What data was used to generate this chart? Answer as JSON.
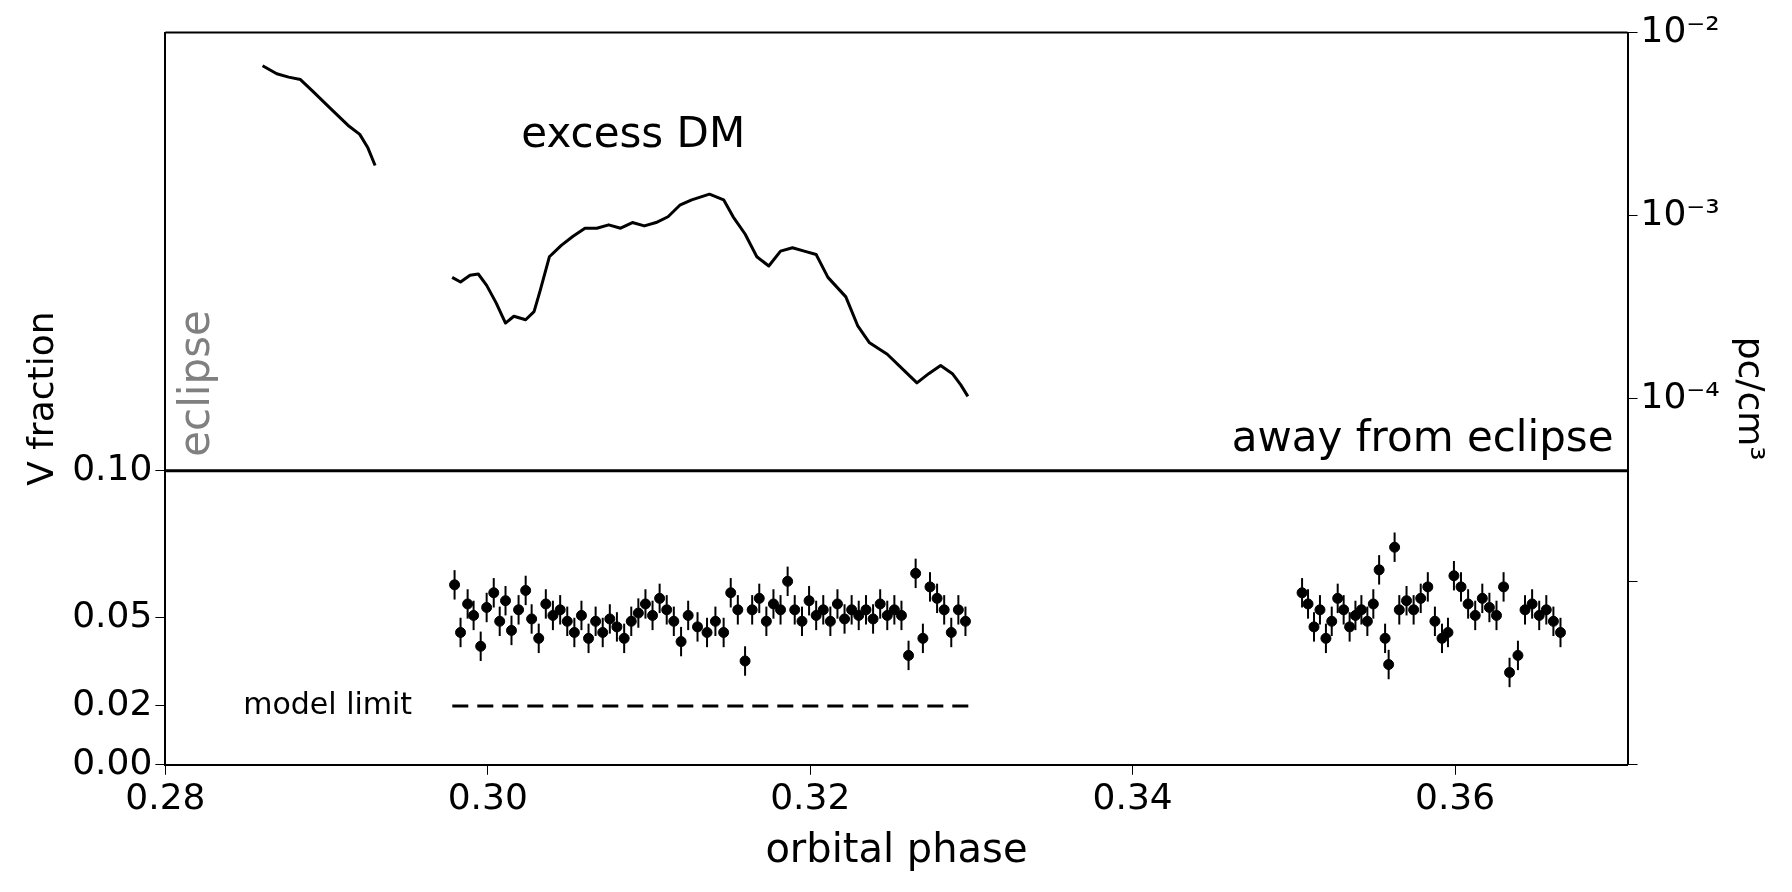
{
  "chart_data": {
    "type": "scatter",
    "xlabel": "orbital phase",
    "ylabel": "V fraction",
    "y2label": "pc/cm³",
    "xlim": [
      0.28,
      0.3707
    ],
    "xticks": [
      {
        "value": 0.28,
        "label": "0.28"
      },
      {
        "value": 0.3,
        "label": "0.30"
      },
      {
        "value": 0.32,
        "label": "0.32"
      },
      {
        "value": 0.34,
        "label": "0.34"
      },
      {
        "value": 0.36,
        "label": "0.36"
      }
    ],
    "ylim": [
      0,
      0.249
    ],
    "yticks": [
      {
        "value": 0,
        "label": "0.00"
      },
      {
        "value": 0.02,
        "label": "0.02"
      },
      {
        "value": 0.05,
        "label": "0.05"
      },
      {
        "value": 0.1,
        "label": "0.10"
      }
    ],
    "y2lim": [
      1e-06,
      0.01
    ],
    "y2ticks": [
      {
        "value": 1e-06,
        "label": null
      },
      {
        "value": 1e-05,
        "label": null
      },
      {
        "value": 0.0001,
        "label": "10⁻⁴"
      },
      {
        "value": 0.001,
        "label": "10⁻³"
      },
      {
        "value": 0.01,
        "label": "10⁻²"
      }
    ],
    "log": "y2",
    "grid": false,
    "ref_lines": [
      {
        "axis": "y",
        "value": 0.1,
        "color": "#000000"
      }
    ],
    "annotations": [
      "excess DM",
      "eclipse",
      "away from eclipse",
      "model limit"
    ],
    "series": [
      {
        "type": "line",
        "axis": "y2",
        "color": "#000000",
        "x": [
          0.28603,
          0.28691,
          0.28765,
          0.28838,
          0.28912,
          0.29022,
          0.29132,
          0.29206,
          0.29257,
          0.29301
        ],
        "values": [
          0.00659,
          0.00596,
          0.00571,
          0.00554,
          0.0048,
          0.00387,
          0.00312,
          0.00278,
          0.00234,
          0.00188
        ]
      },
      {
        "type": "line",
        "axis": "y2",
        "color": "#000000",
        "x": [
          0.29779,
          0.29831,
          0.2989,
          0.29941,
          0.29993,
          0.30051,
          0.3011,
          0.30162,
          0.30235,
          0.30287,
          0.30324,
          0.30382,
          0.30456,
          0.30529,
          0.30603,
          0.30676,
          0.3075,
          0.30824,
          0.30897,
          0.30971,
          0.31044,
          0.31118,
          0.31191,
          0.31265,
          0.31375,
          0.31463,
          0.31522,
          0.31596,
          0.31669,
          0.31743,
          0.31816,
          0.3189,
          0.31963,
          0.32037,
          0.3211,
          0.32221,
          0.32294,
          0.32368,
          0.32478,
          0.32588,
          0.32662,
          0.32735,
          0.32809,
          0.32882,
          0.32934,
          0.32978
        ],
        "values": [
          0.00046,
          0.000434,
          0.000473,
          0.00048,
          0.000416,
          0.000335,
          0.000259,
          0.000282,
          0.00027,
          0.000299,
          0.000387,
          0.000596,
          0.000688,
          0.000772,
          0.000854,
          0.000854,
          0.000891,
          0.000854,
          0.000917,
          0.000879,
          0.000917,
          0.000986,
          0.00114,
          0.00122,
          0.00131,
          0.00122,
          0.000986,
          0.000794,
          0.000596,
          0.000531,
          0.00064,
          0.000668,
          0.00064,
          0.000613,
          0.00046,
          0.00036,
          0.000251,
          0.000202,
          0.000175,
          0.000141,
          0.000122,
          0.000137,
          0.000152,
          0.000137,
          0.000119,
          0.000103
        ]
      },
      {
        "marker": "circle",
        "color": "#000000",
        "x": [
          0.29794,
          0.29831,
          0.29875,
          0.29912,
          0.29956,
          0.29993,
          0.30037,
          0.30074,
          0.3011,
          0.30147,
          0.30191,
          0.30235,
          0.30272,
          0.30316,
          0.3036,
          0.30404,
          0.30449,
          0.30493,
          0.30537,
          0.30581,
          0.30625,
          0.30669,
          0.30713,
          0.30757,
          0.30801,
          0.30846,
          0.3089,
          0.30934,
          0.30978,
          0.31022,
          0.31066,
          0.3111,
          0.31154,
          0.31199,
          0.31243,
          0.31301,
          0.3136,
          0.31412,
          0.31463,
          0.31507,
          0.31551,
          0.31596,
          0.3164,
          0.31684,
          0.31728,
          0.31772,
          0.31816,
          0.3186,
          0.31904,
          0.31949,
          0.31993,
          0.32037,
          0.32081,
          0.32125,
          0.32169,
          0.32213,
          0.32257,
          0.32301,
          0.32346,
          0.3239,
          0.32434,
          0.32478,
          0.32522,
          0.32566,
          0.3261,
          0.32654,
          0.32699,
          0.32743,
          0.32787,
          0.32831,
          0.32875,
          0.32919,
          0.32963
        ],
        "values": [
          0.0612,
          0.045,
          0.0547,
          0.0508,
          0.0403,
          0.0535,
          0.0585,
          0.0488,
          0.0558,
          0.0457,
          0.0527,
          0.0593,
          0.0496,
          0.043,
          0.0547,
          0.0508,
          0.0527,
          0.0488,
          0.045,
          0.0508,
          0.043,
          0.0488,
          0.045,
          0.0496,
          0.0469,
          0.043,
          0.0488,
          0.0516,
          0.0547,
          0.0508,
          0.0566,
          0.0527,
          0.0488,
          0.0419,
          0.0508,
          0.0469,
          0.045,
          0.0488,
          0.045,
          0.0585,
          0.0527,
          0.0353,
          0.0527,
          0.0566,
          0.0488,
          0.0547,
          0.0527,
          0.0624,
          0.0527,
          0.0488,
          0.0558,
          0.0508,
          0.0527,
          0.0488,
          0.0547,
          0.0496,
          0.0527,
          0.0508,
          0.0527,
          0.0496,
          0.0547,
          0.0508,
          0.0527,
          0.0508,
          0.0372,
          0.0651,
          0.043,
          0.0605,
          0.0566,
          0.0527,
          0.045,
          0.0527,
          0.0488
        ],
        "errors": [
          0.005,
          0.005,
          0.005,
          0.005,
          0.005,
          0.005,
          0.005,
          0.005,
          0.005,
          0.005,
          0.005,
          0.005,
          0.005,
          0.005,
          0.005,
          0.005,
          0.005,
          0.005,
          0.005,
          0.005,
          0.005,
          0.005,
          0.005,
          0.005,
          0.005,
          0.005,
          0.005,
          0.005,
          0.005,
          0.005,
          0.005,
          0.005,
          0.005,
          0.005,
          0.005,
          0.005,
          0.005,
          0.005,
          0.005,
          0.005,
          0.005,
          0.005,
          0.005,
          0.005,
          0.005,
          0.005,
          0.005,
          0.005,
          0.005,
          0.005,
          0.005,
          0.005,
          0.005,
          0.005,
          0.005,
          0.005,
          0.005,
          0.005,
          0.005,
          0.005,
          0.005,
          0.005,
          0.005,
          0.005,
          0.005,
          0.005,
          0.005,
          0.005,
          0.005,
          0.005,
          0.005,
          0.005,
          0.005
        ]
      },
      {
        "marker": "circle",
        "color": "#000000",
        "x": [
          0.35051,
          0.35088,
          0.35125,
          0.35162,
          0.35199,
          0.35235,
          0.35272,
          0.35309,
          0.35346,
          0.35382,
          0.35419,
          0.35456,
          0.35493,
          0.35529,
          0.35566,
          0.35588,
          0.35625,
          0.35654,
          0.35699,
          0.35743,
          0.35787,
          0.35831,
          0.35875,
          0.35919,
          0.35956,
          0.35993,
          0.36037,
          0.36081,
          0.36125,
          0.36169,
          0.36213,
          0.36257,
          0.36301,
          0.36338,
          0.3639,
          0.36434,
          0.36478,
          0.36522,
          0.36566,
          0.3661,
          0.36654
        ],
        "values": [
          0.0585,
          0.0547,
          0.0469,
          0.0527,
          0.043,
          0.0488,
          0.0566,
          0.0527,
          0.0469,
          0.0508,
          0.0527,
          0.0488,
          0.0547,
          0.0663,
          0.043,
          0.0341,
          0.074,
          0.0527,
          0.0558,
          0.0527,
          0.0566,
          0.0605,
          0.0488,
          0.043,
          0.045,
          0.0643,
          0.0605,
          0.0547,
          0.0508,
          0.0566,
          0.0535,
          0.0508,
          0.0605,
          0.0314,
          0.0372,
          0.0527,
          0.0547,
          0.0508,
          0.0527,
          0.0488,
          0.045
        ],
        "errors": [
          0.005,
          0.005,
          0.005,
          0.005,
          0.005,
          0.005,
          0.005,
          0.005,
          0.005,
          0.005,
          0.005,
          0.005,
          0.005,
          0.005,
          0.005,
          0.005,
          0.005,
          0.005,
          0.005,
          0.005,
          0.005,
          0.005,
          0.005,
          0.005,
          0.005,
          0.005,
          0.005,
          0.005,
          0.005,
          0.005,
          0.005,
          0.005,
          0.005,
          0.005,
          0.005,
          0.005,
          0.005,
          0.005,
          0.005,
          0.005,
          0.005
        ]
      },
      {
        "type": "line",
        "color": "#000000",
        "line_style": "dashed",
        "x": [
          0.2978,
          0.33
        ],
        "values": [
          0.02,
          0.02
        ]
      }
    ]
  }
}
